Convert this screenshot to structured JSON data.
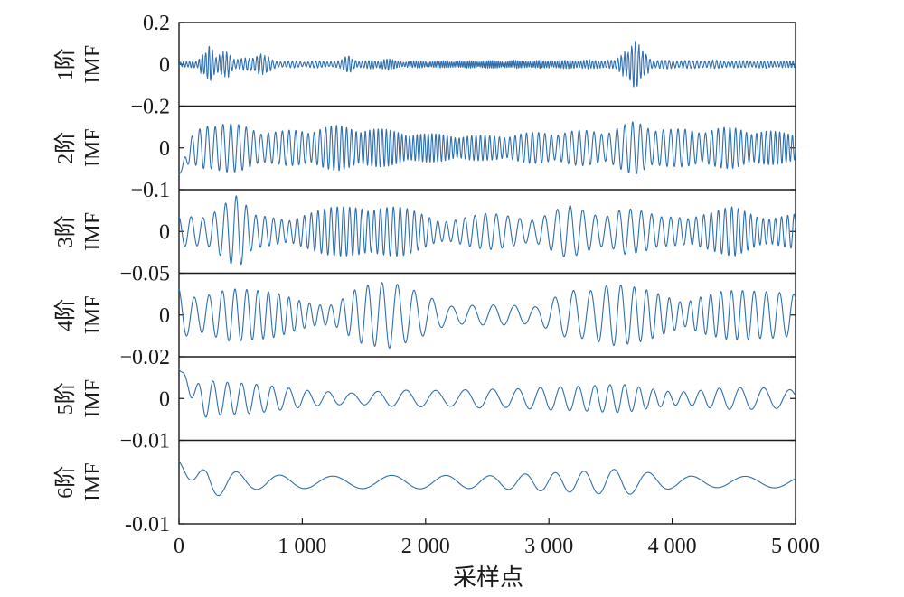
{
  "chart_data": {
    "type": "line",
    "xlabel": "采样点",
    "x_ticks": [
      {
        "value": 0,
        "label": "0"
      },
      {
        "value": 1000,
        "label": "1 000"
      },
      {
        "value": 2000,
        "label": "2 000"
      },
      {
        "value": 3000,
        "label": "3 000"
      },
      {
        "value": 4000,
        "label": "4 000"
      },
      {
        "value": 5000,
        "label": "5 000"
      }
    ],
    "xlim": [
      0,
      5000
    ],
    "grid": false,
    "line_color": "#2f6fae",
    "panels": [
      {
        "ylabel_top": "1阶",
        "ylabel_bottom": "IMF",
        "ylim": [
          -0.2,
          0.2
        ],
        "yticks": [
          {
            "value": 0.2,
            "label": "0.2"
          },
          {
            "value": 0,
            "label": "0"
          },
          {
            "value": -0.2,
            "label": "−0.2"
          }
        ],
        "envelope": [
          [
            0,
            0.012
          ],
          [
            150,
            0.015
          ],
          [
            200,
            0.07
          ],
          [
            250,
            0.09
          ],
          [
            300,
            0.03
          ],
          [
            350,
            0.06
          ],
          [
            400,
            0.075
          ],
          [
            450,
            0.02
          ],
          [
            550,
            0.03
          ],
          [
            650,
            0.05
          ],
          [
            700,
            0.04
          ],
          [
            800,
            0.015
          ],
          [
            1300,
            0.015
          ],
          [
            1380,
            0.045
          ],
          [
            1450,
            0.015
          ],
          [
            1700,
            0.025
          ],
          [
            1800,
            0.015
          ],
          [
            3550,
            0.02
          ],
          [
            3650,
            0.09
          ],
          [
            3700,
            0.12
          ],
          [
            3750,
            0.07
          ],
          [
            3850,
            0.02
          ],
          [
            5000,
            0.015
          ]
        ],
        "period": 28
      },
      {
        "ylabel_top": "2阶",
        "ylabel_bottom": "IMF",
        "ylim": [
          -0.1,
          0.1
        ],
        "yticks": [
          {
            "value": 0,
            "label": "0"
          },
          {
            "value": -0.1,
            "label": "−0.1"
          }
        ],
        "envelope": [
          [
            0,
            0.03
          ],
          [
            150,
            0.045
          ],
          [
            250,
            0.07
          ],
          [
            500,
            0.055
          ],
          [
            800,
            0.04
          ],
          [
            1300,
            0.055
          ],
          [
            1500,
            0.05
          ],
          [
            2000,
            0.035
          ],
          [
            2500,
            0.03
          ],
          [
            3000,
            0.04
          ],
          [
            3500,
            0.045
          ],
          [
            3700,
            0.065
          ],
          [
            4000,
            0.045
          ],
          [
            4500,
            0.05
          ],
          [
            5000,
            0.035
          ]
        ],
        "period": 55,
        "start": [
          [
            0,
            -0.065
          ],
          [
            60,
            -0.05
          ],
          [
            130,
            -0.01
          ]
        ]
      },
      {
        "ylabel_top": "3阶",
        "ylabel_bottom": "IMF",
        "ylim": [
          -0.05,
          0.05
        ],
        "yticks": [
          {
            "value": 0,
            "label": "0"
          },
          {
            "value": -0.05,
            "label": "−0.05"
          }
        ],
        "envelope": [
          [
            0,
            0.018
          ],
          [
            200,
            0.022
          ],
          [
            400,
            0.04
          ],
          [
            480,
            0.045
          ],
          [
            600,
            0.02
          ],
          [
            900,
            0.018
          ],
          [
            1200,
            0.028
          ],
          [
            1500,
            0.035
          ],
          [
            1800,
            0.03
          ],
          [
            2100,
            0.015
          ],
          [
            2500,
            0.022
          ],
          [
            2900,
            0.018
          ],
          [
            3150,
            0.032
          ],
          [
            3400,
            0.022
          ],
          [
            3600,
            0.032
          ],
          [
            3900,
            0.018
          ],
          [
            4300,
            0.024
          ],
          [
            4500,
            0.03
          ],
          [
            4700,
            0.02
          ],
          [
            5000,
            0.022
          ]
        ],
        "period": 90
      },
      {
        "ylabel_top": "4阶",
        "ylabel_bottom": "IMF",
        "ylim": [
          -0.02,
          0.02
        ],
        "yticks": [
          {
            "value": 0,
            "label": "0"
          },
          {
            "value": -0.02,
            "label": "−0.02"
          }
        ],
        "envelope": [
          [
            0,
            0.017
          ],
          [
            150,
            0.01
          ],
          [
            400,
            0.013
          ],
          [
            800,
            0.011
          ],
          [
            1000,
            0.008
          ],
          [
            1250,
            0.006
          ],
          [
            1450,
            0.014
          ],
          [
            1700,
            0.016
          ],
          [
            1950,
            0.012
          ],
          [
            2200,
            0.006
          ],
          [
            2600,
            0.005
          ],
          [
            2900,
            0.004
          ],
          [
            3200,
            0.015
          ],
          [
            3500,
            0.017
          ],
          [
            3800,
            0.012
          ],
          [
            4100,
            0.006
          ],
          [
            4400,
            0.016
          ],
          [
            4700,
            0.012
          ],
          [
            5000,
            0.01
          ]
        ],
        "period": 150
      },
      {
        "ylabel_top": "5阶",
        "ylabel_bottom": "IMF",
        "ylim": [
          -0.01,
          0.01
        ],
        "yticks": [
          {
            "value": 0,
            "label": "0"
          },
          {
            "value": -0.01,
            "label": "−0.01"
          }
        ],
        "envelope": [
          [
            0,
            0.007
          ],
          [
            150,
            0.005
          ],
          [
            300,
            0.004
          ],
          [
            700,
            0.0035
          ],
          [
            1100,
            0.0025
          ],
          [
            1400,
            0.0015
          ],
          [
            1800,
            0.002
          ],
          [
            2200,
            0.002
          ],
          [
            2500,
            0.003
          ],
          [
            2900,
            0.003
          ],
          [
            3300,
            0.003
          ],
          [
            3600,
            0.0035
          ],
          [
            4000,
            0.002
          ],
          [
            4400,
            0.003
          ],
          [
            4800,
            0.0025
          ],
          [
            5000,
            0.002
          ]
        ],
        "period": 210,
        "start": [
          [
            0,
            0.007
          ],
          [
            120,
            0.004
          ],
          [
            230,
            -0.005
          ]
        ]
      },
      {
        "ylabel_top": "6阶",
        "ylabel_bottom": "IMF",
        "ylim": [
          -0.01,
          0.01
        ],
        "yticks": [
          {
            "value": -0.01,
            "label": "-0.01"
          }
        ],
        "envelope": [
          [
            0,
            0.005
          ],
          [
            200,
            0.004
          ],
          [
            600,
            0.002
          ],
          [
            1500,
            0.002
          ],
          [
            2500,
            0.0015
          ],
          [
            3200,
            0.0025
          ],
          [
            3600,
            0.0035
          ],
          [
            4000,
            0.002
          ],
          [
            5000,
            0.0015
          ]
        ],
        "period": 420,
        "start": [
          [
            0,
            0.005
          ],
          [
            100,
            0.003
          ],
          [
            230,
            -0.004
          ]
        ]
      }
    ]
  }
}
